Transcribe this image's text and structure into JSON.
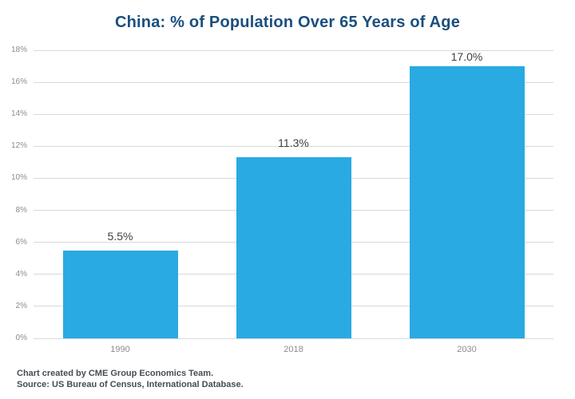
{
  "title": "China: % of Population Over 65 Years of Age",
  "footer": {
    "line1": "Chart created by CME Group Economics Team.",
    "line2": "Source: US Bureau of Census, International Database."
  },
  "colors": {
    "bar": "#29AAE2",
    "title": "#1A4F7F",
    "gridline": "#D9D9D9",
    "tick_label": "#8C8C8C",
    "data_label": "#3F3F3F",
    "footer": "#454D54"
  },
  "chart_data": {
    "type": "bar",
    "title": "China: % of Population Over 65 Years of Age",
    "categories": [
      "1990",
      "2018",
      "2030"
    ],
    "values": [
      5.5,
      11.3,
      17.0
    ],
    "data_labels": [
      "5.5%",
      "11.3%",
      "17.0%"
    ],
    "xlabel": "",
    "ylabel": "",
    "ylim": [
      0,
      18
    ],
    "ytick_step": 2,
    "ytick_suffix": "%",
    "grid": true,
    "legend": false
  }
}
